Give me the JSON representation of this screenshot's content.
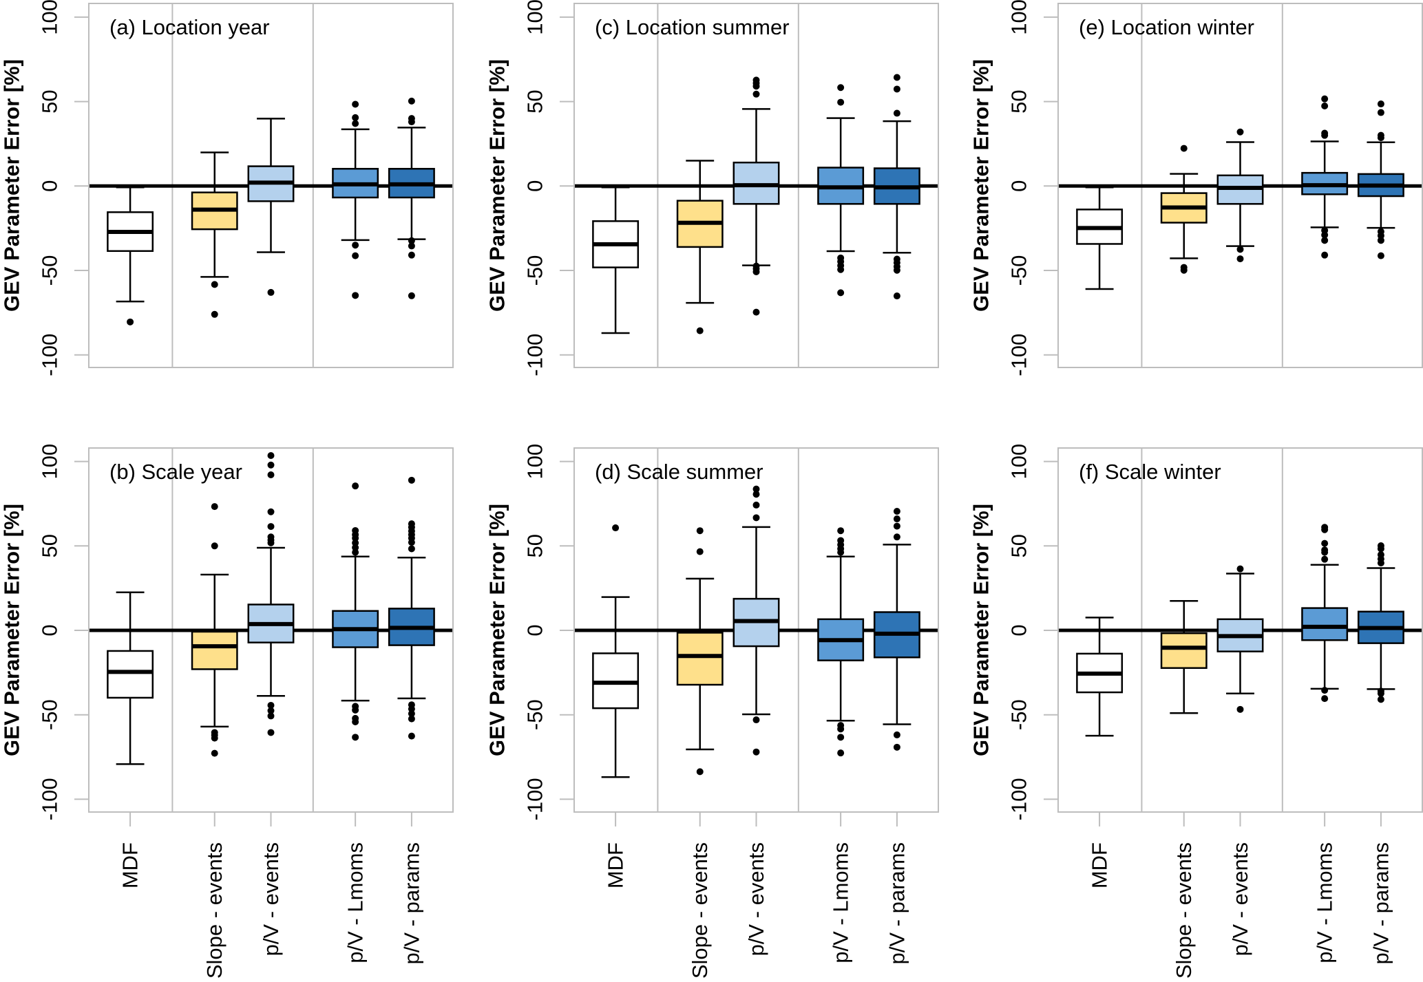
{
  "chart_data": {
    "type": "boxplot",
    "layout": "3 columns x 2 rows",
    "ylabel": "GEV Parameter Error [%]",
    "ylim": [
      -110,
      105
    ],
    "yticks": [
      -100,
      -50,
      0,
      50,
      100
    ],
    "reference_line": 0,
    "categories": [
      "MDF",
      "Slope - events",
      "p/V - events",
      "p/V - Lmoms",
      "p/V - params"
    ],
    "category_positions": [
      1,
      2.5,
      3.5,
      5,
      6
    ],
    "xlim": [
      0.265,
      6.735
    ],
    "group_dividers": [
      1.75,
      4.25
    ],
    "colors": {
      "MDF": "#ffffff",
      "Slope - events": "#fee08b",
      "p/V - events": "#b4d1ed",
      "p/V - Lmoms": "#5b9bd5",
      "p/V - params": "#2e74b5",
      "divider": "#bdbdbd",
      "axis": "#bdbdbd",
      "reference_line": "#000000"
    },
    "panels": [
      {
        "id": "a",
        "title": "(a) Location year",
        "row": 0,
        "col": 0,
        "boxes": [
          {
            "name": "MDF",
            "whisker_low": -68.4,
            "q1": -38.5,
            "median": -27.2,
            "q3": -15.5,
            "whisker_high": -0.8,
            "outliers": [
              -80.5
            ]
          },
          {
            "name": "Slope - events",
            "whisker_low": -53.8,
            "q1": -25.6,
            "median": -14,
            "q3": -3.8,
            "whisker_high": 19.9,
            "outliers": [
              -58.3,
              -76
            ]
          },
          {
            "name": "p/V - events",
            "whisker_low": -39.2,
            "q1": -9,
            "median": 2,
            "q3": 11.7,
            "whisker_high": 39.9,
            "outliers": [
              -63
            ]
          },
          {
            "name": "p/V - Lmoms",
            "whisker_low": -32,
            "q1": -6.8,
            "median": 1,
            "q3": 10.2,
            "whisker_high": 33.6,
            "outliers": [
              48.4,
              40.5,
              37,
              -35,
              -41.3,
              -64.8
            ]
          },
          {
            "name": "p/V - params",
            "whisker_low": -31.5,
            "q1": -6.8,
            "median": 1,
            "q3": 10.2,
            "whisker_high": 34.6,
            "outliers": [
              50.3,
              40,
              38,
              -32.4,
              -35.5,
              -40.9,
              -65
            ]
          }
        ]
      },
      {
        "id": "b",
        "title": "(b) Scale year",
        "row": 1,
        "col": 0,
        "boxes": [
          {
            "name": "MDF",
            "whisker_low": -79.2,
            "q1": -39.9,
            "median": -24.6,
            "q3": -12.2,
            "whisker_high": 22.5,
            "outliers": []
          },
          {
            "name": "Slope - events",
            "whisker_low": -57,
            "q1": -23,
            "median": -9.4,
            "q3": -0.8,
            "whisker_high": 33,
            "outliers": [
              73.3,
              50,
              -60.5,
              -62,
              -63.8,
              -72.8
            ]
          },
          {
            "name": "p/V - events",
            "whisker_low": -38.8,
            "q1": -7.2,
            "median": 3.7,
            "q3": 15.3,
            "whisker_high": 48.9,
            "outliers": [
              103.5,
              97.9,
              92.1,
              70.2,
              61.5,
              55.3,
              53.5,
              51.8,
              -44.4,
              -47.6,
              -50.7,
              -60.5
            ]
          },
          {
            "name": "p/V - Lmoms",
            "whisker_low": -41.6,
            "q1": -10,
            "median": 0.7,
            "q3": 11.5,
            "whisker_high": 43.7,
            "outliers": [
              85.5,
              59.1,
              56.7,
              54.6,
              51.8,
              49,
              46.2,
              -45,
              -47.2,
              -52.1,
              -54.2,
              -63.3
            ]
          },
          {
            "name": "p/V - params",
            "whisker_low": -40.3,
            "q1": -8.8,
            "median": 1.5,
            "q3": 12.9,
            "whisker_high": 43.1,
            "outliers": [
              88.9,
              63.1,
              61,
              58.8,
              56.7,
              54.6,
              52.1,
              48.3,
              -44.1,
              -46.5,
              -49.3,
              -52.4,
              -62.6
            ]
          }
        ]
      },
      {
        "id": "c",
        "title": "(c) Location summer",
        "row": 0,
        "col": 1,
        "boxes": [
          {
            "name": "MDF",
            "whisker_low": -87.1,
            "q1": -48.2,
            "median": -34.5,
            "q3": -20.8,
            "whisker_high": -0.8,
            "outliers": []
          },
          {
            "name": "Slope - events",
            "whisker_low": -69.2,
            "q1": -36.1,
            "median": -21.8,
            "q3": -8.7,
            "whisker_high": 15,
            "outliers": [
              -85.7
            ]
          },
          {
            "name": "p/V - events",
            "whisker_low": -47,
            "q1": -10.6,
            "median": 0.5,
            "q3": 13.9,
            "whisker_high": 45.6,
            "outliers": [
              62.7,
              60.9,
              59.1,
              54.4,
              -47.4,
              -49,
              -50.8,
              -74.7
            ]
          },
          {
            "name": "p/V - Lmoms",
            "whisker_low": -38.6,
            "q1": -10.6,
            "median": -0.8,
            "q3": 10.9,
            "whisker_high": 40.2,
            "outliers": [
              58.3,
              49.6,
              -42.6,
              -44.7,
              -47.1,
              -49.5,
              -63.2
            ]
          },
          {
            "name": "p/V - params",
            "whisker_low": -39.5,
            "q1": -10.6,
            "median": -0.8,
            "q3": 10.5,
            "whisker_high": 38.4,
            "outliers": [
              64.3,
              57.4,
              43.1,
              -43.3,
              -45.4,
              -47.7,
              -49.9,
              -65.1
            ]
          }
        ]
      },
      {
        "id": "d",
        "title": "(d) Scale summer",
        "row": 1,
        "col": 1,
        "boxes": [
          {
            "name": "MDF",
            "whisker_low": -86.9,
            "q1": -46.1,
            "median": -31,
            "q3": -13.6,
            "whisker_high": 19.7,
            "outliers": [
              60.7
            ]
          },
          {
            "name": "Slope - events",
            "whisker_low": -70.5,
            "q1": -32.2,
            "median": -15.2,
            "q3": -1.4,
            "whisker_high": 30.6,
            "outliers": [
              59,
              46.6,
              -83.7
            ]
          },
          {
            "name": "p/V - events",
            "whisker_low": -49.7,
            "q1": -9.4,
            "median": 5.5,
            "q3": 18.7,
            "whisker_high": 61.2,
            "outliers": [
              83.7,
              80.6,
              74.2,
              66.7,
              -53,
              -72
            ]
          },
          {
            "name": "p/V - Lmoms",
            "whisker_low": -53.5,
            "q1": -17.8,
            "median": -5.8,
            "q3": 6.6,
            "whisker_high": 43.7,
            "outliers": [
              59,
              53.2,
              50.7,
              48.3,
              46.2,
              -56.3,
              -58.4,
              -63.3,
              -72.6
            ]
          },
          {
            "name": "p/V - params",
            "whisker_low": -55.6,
            "q1": -16,
            "median": -2,
            "q3": 10.8,
            "whisker_high": 50.8,
            "outliers": [
              70.5,
              66,
              61.7,
              55.3,
              -61.9,
              -69.2
            ]
          }
        ]
      },
      {
        "id": "e",
        "title": "(e) Location winter",
        "row": 0,
        "col": 2,
        "boxes": [
          {
            "name": "MDF",
            "whisker_low": -61,
            "q1": -34.3,
            "median": -24.9,
            "q3": -13.9,
            "whisker_high": -0.8,
            "outliers": []
          },
          {
            "name": "Slope - events",
            "whisker_low": -42.8,
            "q1": -21.7,
            "median": -12.7,
            "q3": -4.2,
            "whisker_high": 7.2,
            "outliers": [
              22.3,
              -48.2,
              -49.9
            ]
          },
          {
            "name": "p/V - events",
            "whisker_low": -35.6,
            "q1": -10.6,
            "median": -1.1,
            "q3": 6.3,
            "whisker_high": 26,
            "outliers": [
              32,
              -37.5,
              -43.1
            ]
          },
          {
            "name": "p/V - Lmoms",
            "whisker_low": -24.5,
            "q1": -4.9,
            "median": 0.5,
            "q3": 7.8,
            "whisker_high": 26.4,
            "outliers": [
              51.6,
              47.4,
              31.3,
              30,
              -26.3,
              -29,
              -32.2,
              -40.9
            ]
          },
          {
            "name": "p/V - params",
            "whisker_low": -24.8,
            "q1": -6,
            "median": 0.3,
            "q3": 7.1,
            "whisker_high": 25.9,
            "outliers": [
              48.6,
              43.5,
              30,
              28.6,
              -27,
              -29.4,
              -32.2,
              -41.3
            ]
          }
        ]
      },
      {
        "id": "f",
        "title": "(f) Scale winter",
        "row": 1,
        "col": 2,
        "boxes": [
          {
            "name": "MDF",
            "whisker_low": -62.4,
            "q1": -36.7,
            "median": -25.6,
            "q3": -13.8,
            "whisker_high": 7.6,
            "outliers": []
          },
          {
            "name": "Slope - events",
            "whisker_low": -49,
            "q1": -22.3,
            "median": -10.3,
            "q3": -1.7,
            "whisker_high": 17.4,
            "outliers": []
          },
          {
            "name": "p/V - events",
            "whisker_low": -37.4,
            "q1": -12.5,
            "median": -3.4,
            "q3": 6.6,
            "whisker_high": 33.6,
            "outliers": [
              36.4,
              -46.8
            ]
          },
          {
            "name": "p/V - Lmoms",
            "whisker_low": -34.6,
            "q1": -5.8,
            "median": 2.1,
            "q3": 13.2,
            "whisker_high": 38.8,
            "outliers": [
              61,
              59.6,
              51.5,
              47.6,
              46.2,
              42.1,
              -35.5,
              -40.4
            ]
          },
          {
            "name": "p/V - params",
            "whisker_low": -34.8,
            "q1": -7.6,
            "median": 1.4,
            "q3": 11.1,
            "whisker_high": 36.9,
            "outliers": [
              50.1,
              48.3,
              44.8,
              42.3,
              39.9,
              -36,
              -37.4,
              -40.9
            ]
          }
        ]
      }
    ]
  }
}
